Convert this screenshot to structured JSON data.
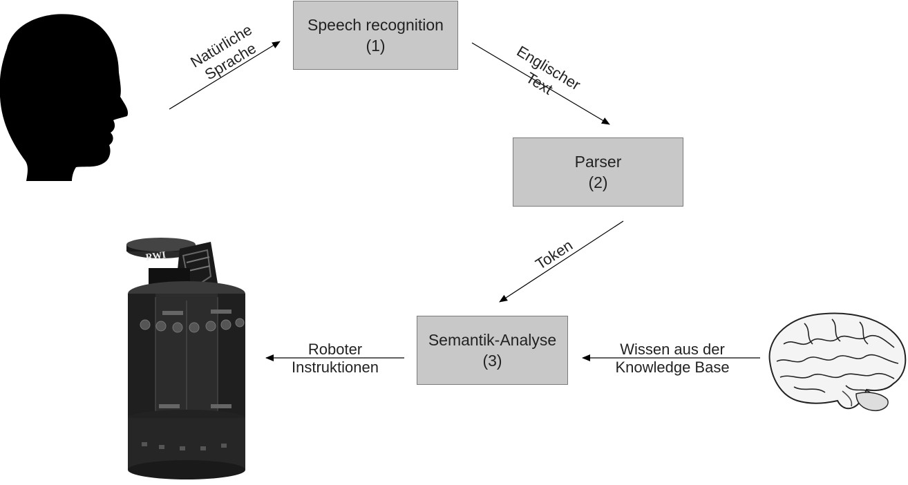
{
  "boxes": {
    "speech": {
      "title": "Speech recognition",
      "number": "(1)"
    },
    "parser": {
      "title": "Parser",
      "number": "(2)"
    },
    "semantik": {
      "title": "Semantik-Analyse",
      "number": "(3)"
    }
  },
  "edges": {
    "natuerliche": {
      "line1": "Natürliche",
      "line2": "Sprache"
    },
    "englischer": {
      "line1": "Englischer",
      "line2": "Text"
    },
    "token": {
      "line1": "Token"
    },
    "wissen": {
      "line1": "Wissen aus der",
      "line2": "Knowledge Base"
    },
    "roboter": {
      "line1": "Roboter",
      "line2": "Instruktionen"
    }
  },
  "robot_logo": "RWI",
  "icons": {
    "human": "human-head-silhouette-icon",
    "robot": "rwi-robot-icon",
    "brain": "brain-icon"
  }
}
